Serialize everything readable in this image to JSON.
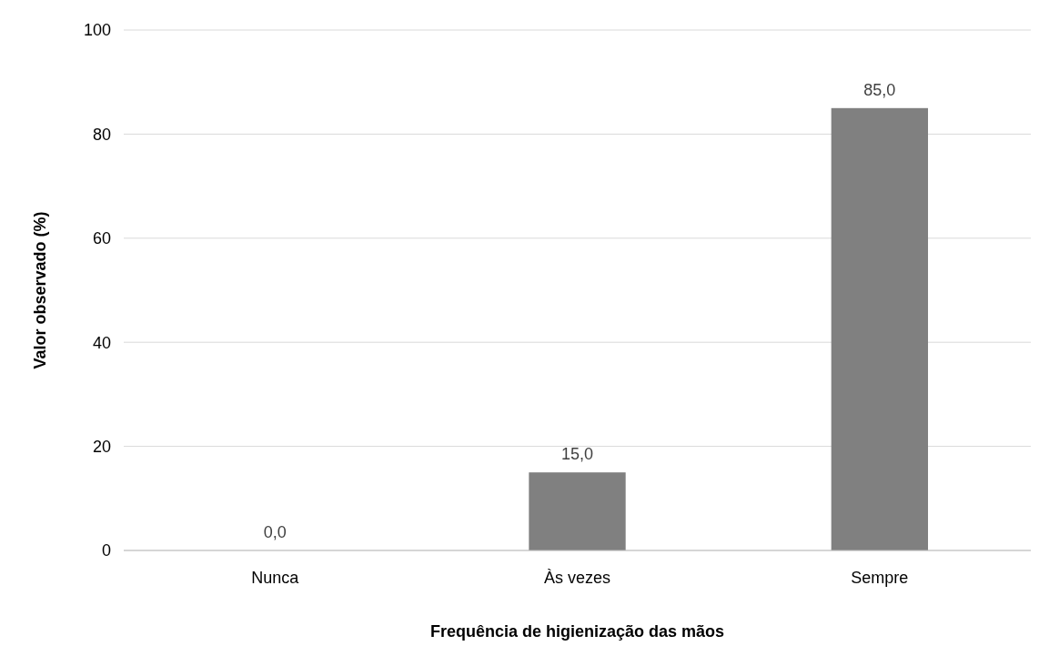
{
  "chart_data": {
    "type": "bar",
    "xlabel": "Frequência de higienização das mãos",
    "ylabel": "Valor observado (%)",
    "categories": [
      "Nunca",
      "Às vezes",
      "Sempre"
    ],
    "values": [
      0,
      15,
      85
    ],
    "color": "#808080",
    "value_labels": [
      "0,0",
      "15,0",
      "85,0"
    ],
    "ylim": [
      0,
      100
    ],
    "yticks": [
      0,
      20,
      40,
      60,
      80,
      100
    ],
    "grid": "y"
  }
}
